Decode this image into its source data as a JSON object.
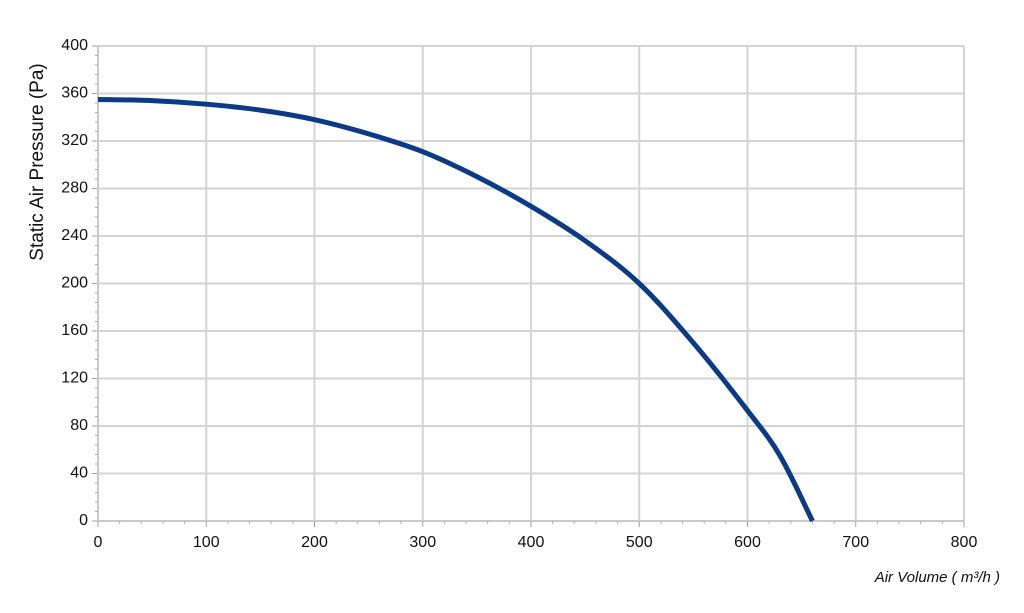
{
  "chart_data": {
    "type": "line",
    "title": "",
    "xlabel": "Air Volume ( m³/h )",
    "ylabel": "Static Air Pressure  (Pa)",
    "xlim": [
      0,
      800
    ],
    "ylim": [
      0,
      400
    ],
    "xticks": [
      "0",
      "100",
      "200",
      "300",
      "400",
      "500",
      "600",
      "700",
      "800"
    ],
    "yticks": [
      "0",
      "40",
      "80",
      "120",
      "160",
      "200",
      "240",
      "280",
      "320",
      "360",
      "400"
    ],
    "grid": true,
    "legend": "none",
    "series": [
      {
        "color": "#0b3a86",
        "x": [
          0,
          50,
          100,
          150,
          200,
          250,
          300,
          350,
          400,
          450,
          500,
          550,
          600,
          630,
          660
        ],
        "y": [
          355,
          354,
          351,
          346,
          338,
          326,
          311,
          290,
          265,
          236,
          200,
          150,
          93,
          55,
          0
        ]
      }
    ]
  }
}
